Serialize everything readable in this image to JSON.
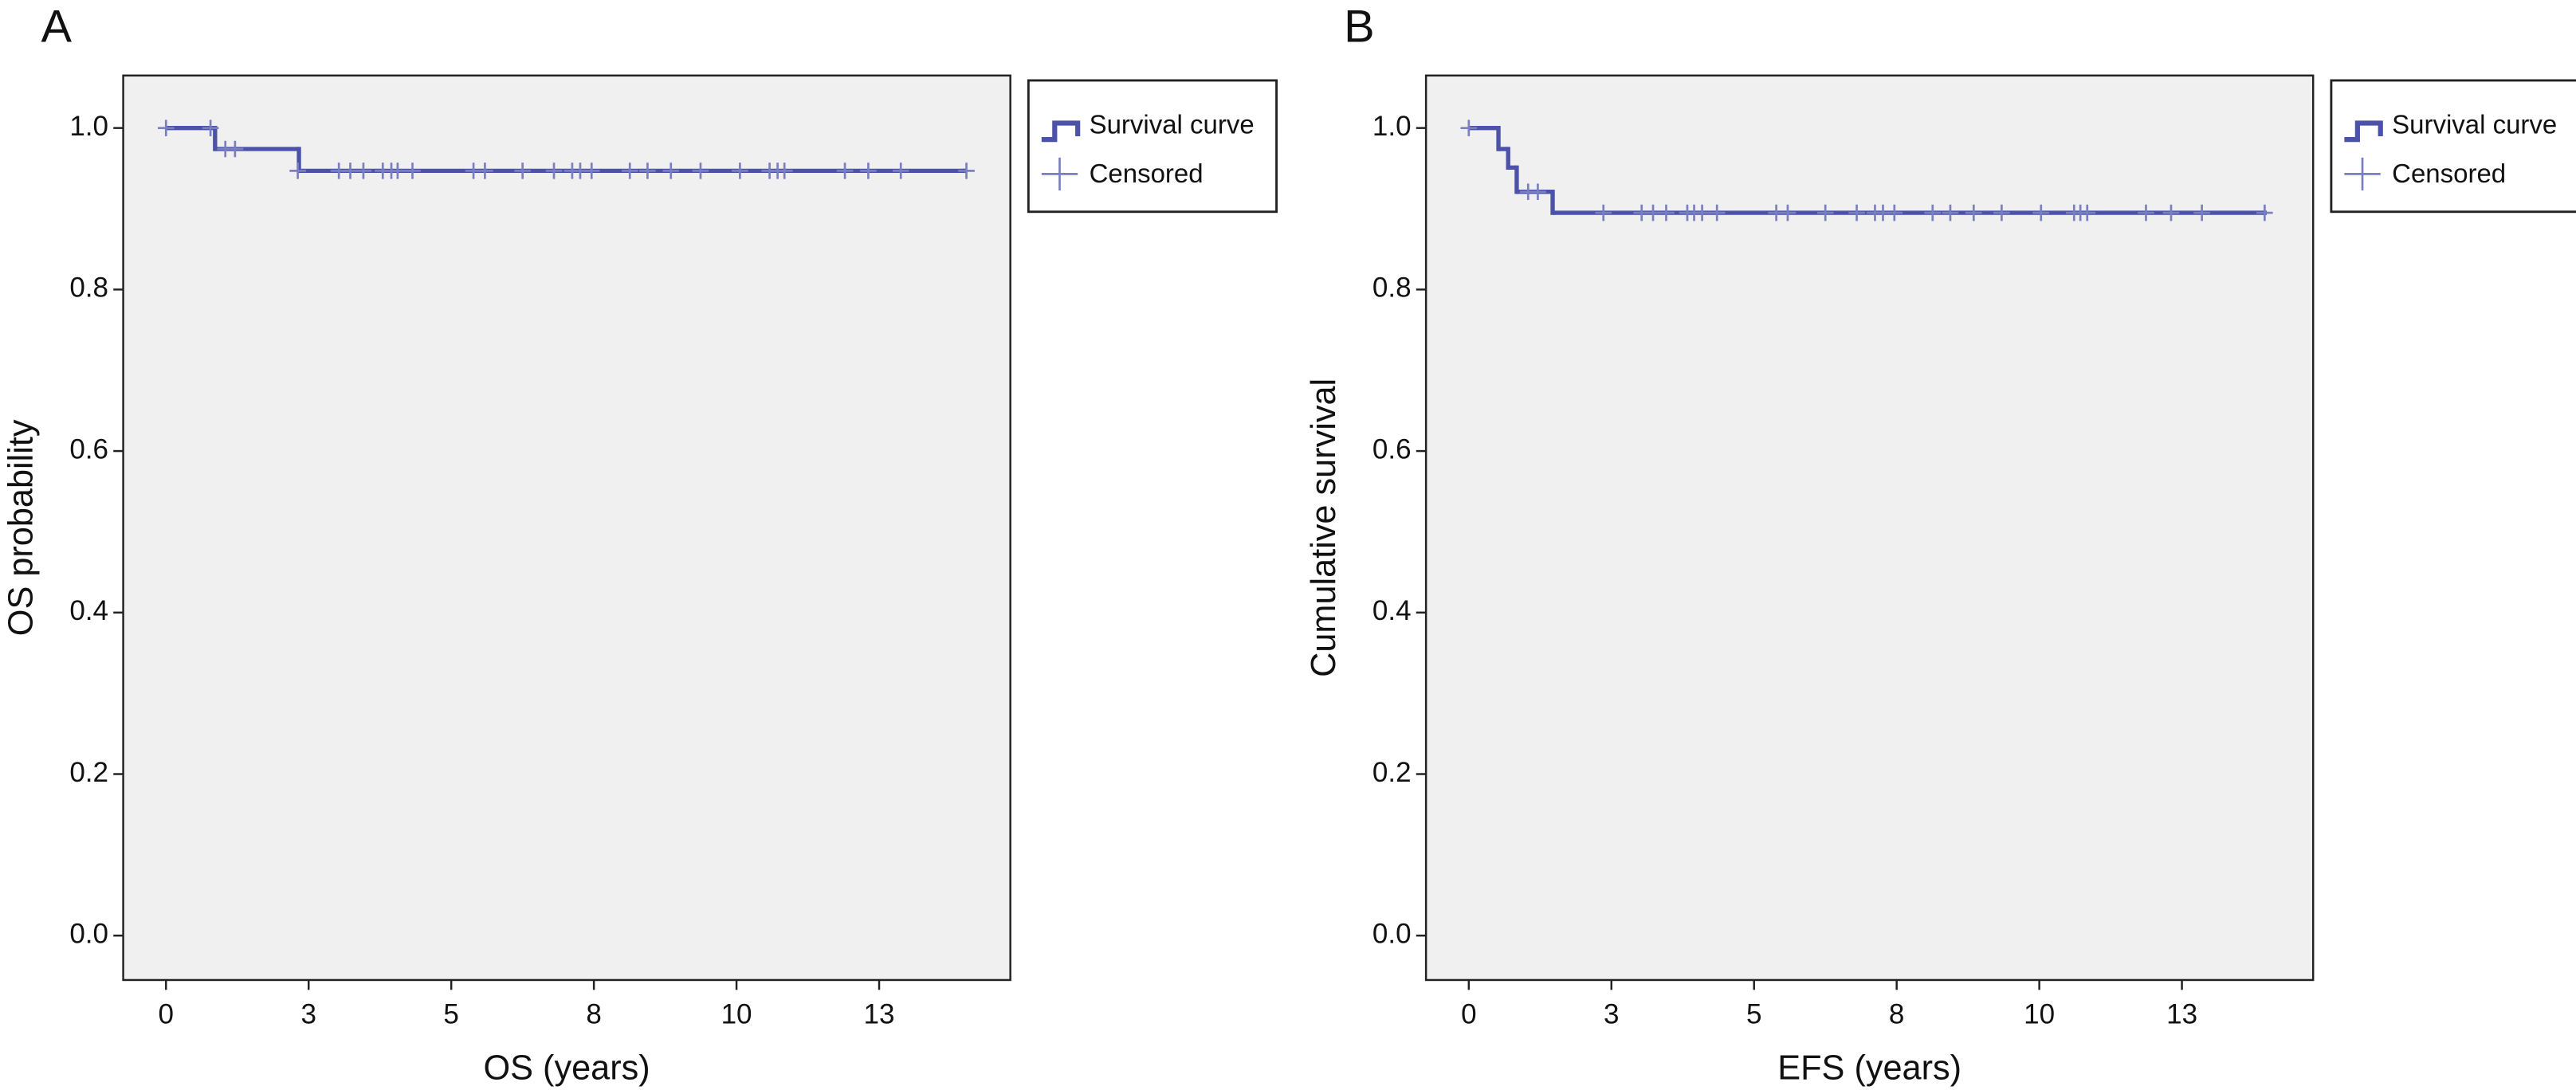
{
  "chart_data": [
    {
      "type": "survival",
      "panel": "A",
      "xlabel": "OS (years)",
      "ylabel": "OS probability",
      "xlim": [
        -0.75,
        14.8
      ],
      "ylim": [
        -0.055,
        1.065
      ],
      "xticks": [
        0,
        {
          "value": 2.5,
          "label": "3"
        },
        5,
        {
          "value": 7.5,
          "label": "8"
        },
        10,
        {
          "value": 12.5,
          "label": "13"
        }
      ],
      "yticks": [
        {
          "value": 0,
          "label": "0.0"
        },
        0.2,
        0.4,
        0.6,
        0.8,
        {
          "value": 1,
          "label": "1.0"
        }
      ],
      "legend": "right",
      "background": "#f0f0f0",
      "series": [
        {
          "name": "Survival curve",
          "color": "#4b52a8",
          "x": [
            0,
            0.86,
            2.33,
            14.0
          ],
          "values": [
            1.0,
            0.974,
            0.947,
            0.947
          ]
        },
        {
          "name": "Censored",
          "color": "#7a7fc0",
          "x": [
            0,
            0.78,
            1.04,
            1.21,
            2.31,
            3.03,
            3.23,
            3.46,
            3.8,
            3.95,
            4.06,
            4.32,
            5.39,
            5.59,
            6.25,
            6.8,
            7.12,
            7.26,
            7.46,
            8.13,
            8.44,
            8.85,
            9.37,
            10.06,
            10.58,
            10.72,
            10.84,
            11.9,
            12.31,
            12.88,
            14.03
          ],
          "values": [
            1.0,
            1.0,
            0.974,
            0.974,
            0.947,
            0.947,
            0.947,
            0.947,
            0.947,
            0.947,
            0.947,
            0.947,
            0.947,
            0.947,
            0.947,
            0.947,
            0.947,
            0.947,
            0.947,
            0.947,
            0.947,
            0.947,
            0.947,
            0.947,
            0.947,
            0.947,
            0.947,
            0.947,
            0.947,
            0.947,
            0.947
          ]
        }
      ]
    },
    {
      "type": "survival",
      "panel": "B",
      "xlabel": "EFS (years)",
      "ylabel": "Cumulative survival",
      "xlim": [
        -0.75,
        14.8
      ],
      "ylim": [
        -0.055,
        1.065
      ],
      "xticks": [
        0,
        {
          "value": 2.5,
          "label": "3"
        },
        5,
        {
          "value": 7.5,
          "label": "8"
        },
        10,
        {
          "value": 12.5,
          "label": "13"
        }
      ],
      "yticks": [
        {
          "value": 0,
          "label": "0.0"
        },
        0.2,
        0.4,
        0.6,
        0.8,
        {
          "value": 1,
          "label": "1.0"
        }
      ],
      "legend": "right",
      "background": "#f0f0f0",
      "series": [
        {
          "name": "Survival curve",
          "color": "#4b52a8",
          "x": [
            0,
            0.52,
            0.69,
            0.84,
            1.47,
            13.95
          ],
          "values": [
            1.0,
            0.974,
            0.951,
            0.921,
            0.895,
            0.895
          ]
        },
        {
          "name": "Censored",
          "color": "#7a7fc0",
          "x": [
            0,
            1.04,
            1.21,
            2.36,
            3.03,
            3.23,
            3.46,
            3.83,
            3.95,
            4.09,
            4.35,
            5.39,
            5.59,
            6.25,
            6.8,
            7.12,
            7.26,
            7.46,
            8.13,
            8.44,
            8.85,
            9.34,
            10.03,
            10.61,
            10.72,
            10.84,
            11.87,
            12.31,
            12.85,
            13.95
          ],
          "values": [
            1.0,
            0.921,
            0.921,
            0.895,
            0.895,
            0.895,
            0.895,
            0.895,
            0.895,
            0.895,
            0.895,
            0.895,
            0.895,
            0.895,
            0.895,
            0.895,
            0.895,
            0.895,
            0.895,
            0.895,
            0.895,
            0.895,
            0.895,
            0.895,
            0.895,
            0.895,
            0.895,
            0.895,
            0.895,
            0.895
          ]
        }
      ]
    }
  ]
}
